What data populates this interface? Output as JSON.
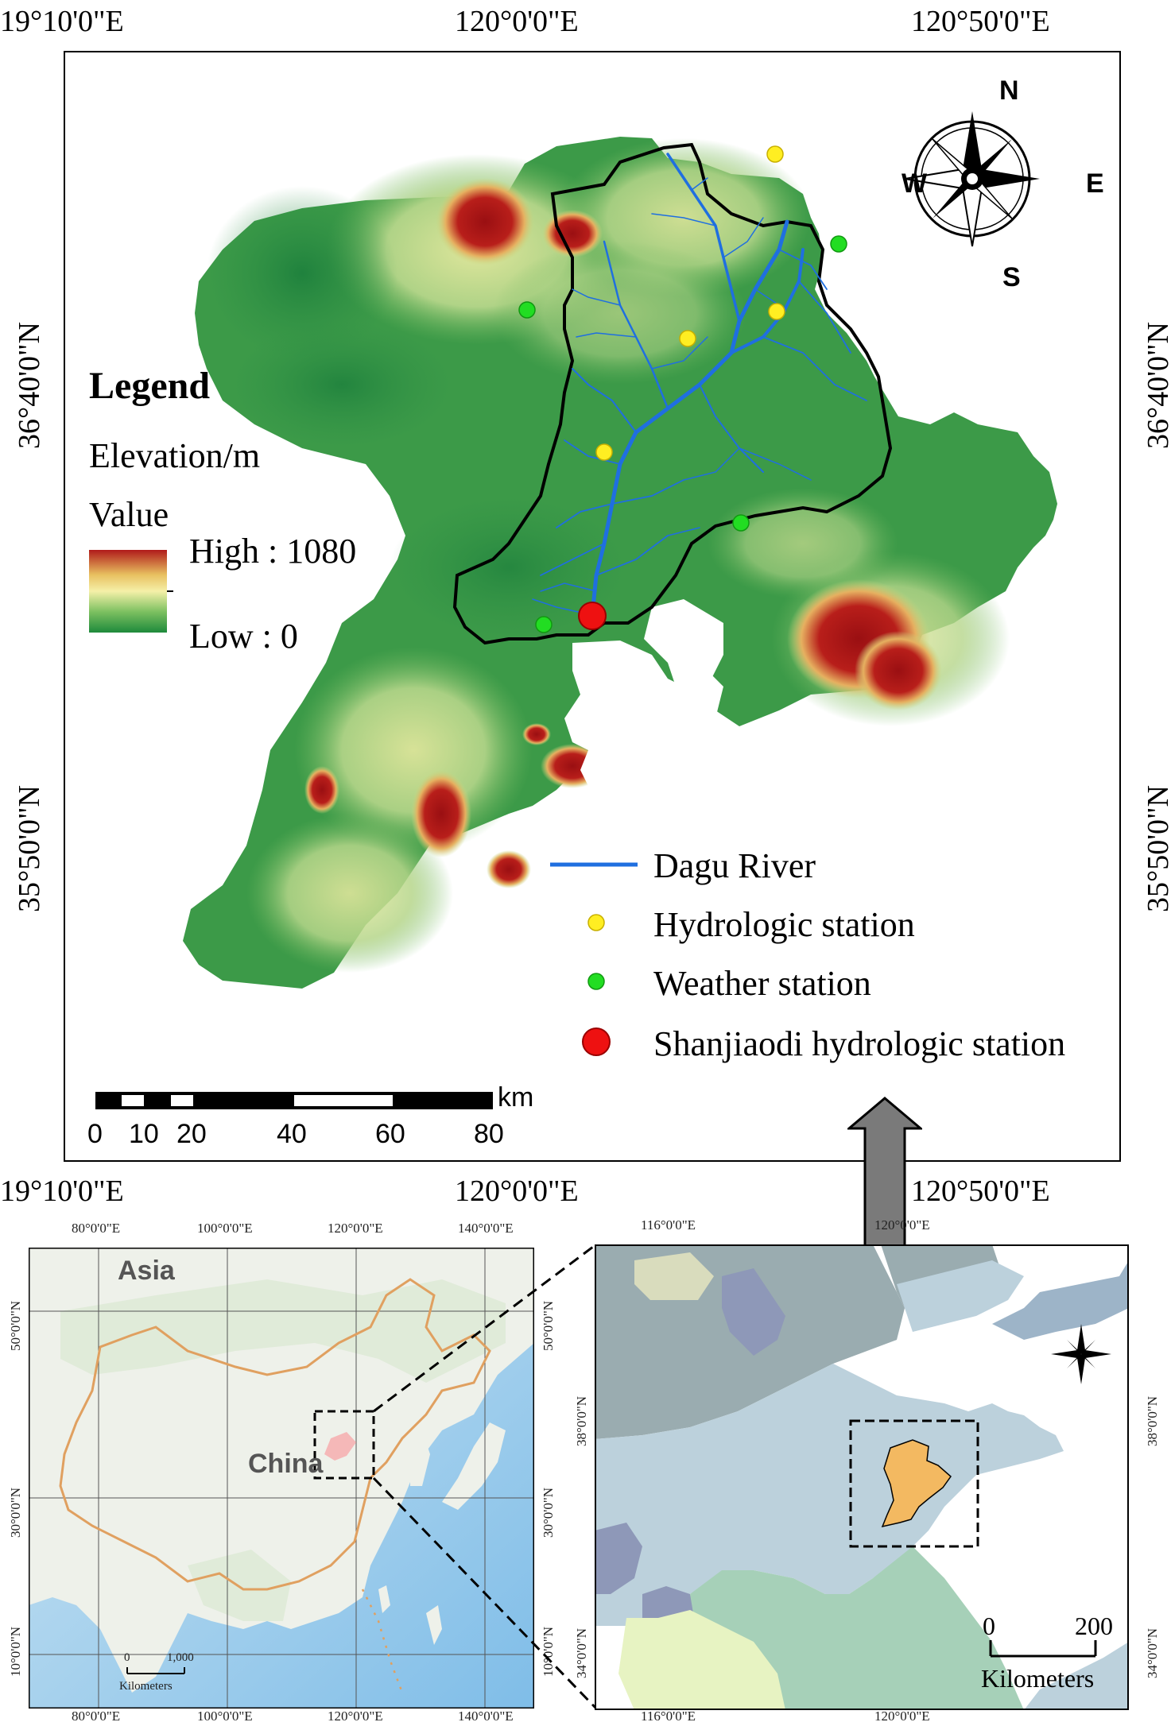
{
  "main_map": {
    "top_lon_labels": [
      "19°10'0\"E",
      "120°0'0\"E",
      "120°50'0\"E"
    ],
    "bottom_lon_labels": [
      "19°10'0\"E",
      "120°0'0\"E",
      "120°50'0\"E"
    ],
    "left_lat_labels": [
      "36°40'0\"N",
      "35°50'0\"N"
    ],
    "right_lat_labels": [
      "36°40'0\"N",
      "35°50'0\"N"
    ],
    "legend": {
      "title": "Legend",
      "subtitle": "Elevation/m",
      "value_label": "Value",
      "high_label": "High : 1080",
      "low_label": "Low : 0",
      "ramp_colors": [
        "#b01a1a",
        "#e8c060",
        "#f5f0a8",
        "#7cc060",
        "#1e8a3c"
      ]
    },
    "features_legend": [
      {
        "label": "Dagu River",
        "symbol": "line",
        "color": "#1f6fe0"
      },
      {
        "label": "Hydrologic station",
        "symbol": "dot-small",
        "color": "#ffee22"
      },
      {
        "label": "Weather station",
        "symbol": "dot-small",
        "color": "#22dd22"
      },
      {
        "label": "Shanjiaodi hydrologic station",
        "symbol": "dot-large",
        "color": "#ee1111"
      }
    ],
    "compass": {
      "n": "N",
      "s": "S",
      "e": "E",
      "w": "W"
    },
    "scalebar": {
      "unit": "km",
      "ticks": [
        "0",
        "10",
        "20",
        "40",
        "60",
        "80"
      ]
    }
  },
  "china_inset": {
    "top_lon_labels": [
      "80°0'0\"E",
      "100°0'0\"E",
      "120°0'0\"E",
      "140°0'0\"E"
    ],
    "bottom_lon_labels": [
      "80°0'0\"E",
      "100°0'0\"E",
      "120°0'0\"E",
      "140°0'0\"E"
    ],
    "left_lat_labels": [
      "50°0'0\"N",
      "30°0'0\"N",
      "10°0'0\"N"
    ],
    "right_lat_labels": [
      "50°0'0\"N",
      "30°0'0\"N",
      "10°0'0\"N"
    ],
    "label_asia": "Asia",
    "label_china": "China",
    "scalebar": {
      "ticks": [
        "0",
        "1,000"
      ],
      "unit": "Kilometers"
    }
  },
  "region_inset": {
    "top_lon_labels": [
      "116°0'0\"E",
      "120°0'0\"E"
    ],
    "bottom_lon_labels": [
      "116°0'0\"E",
      "120°0'0\"E"
    ],
    "left_lat_labels": [
      "38°0'0\"N",
      "34°0'0\"N"
    ],
    "right_lat_labels": [
      "38°0'0\"N",
      "34°0'0\"N"
    ],
    "scalebar": {
      "ticks": [
        "0",
        "200"
      ],
      "unit": "Kilometers"
    }
  }
}
